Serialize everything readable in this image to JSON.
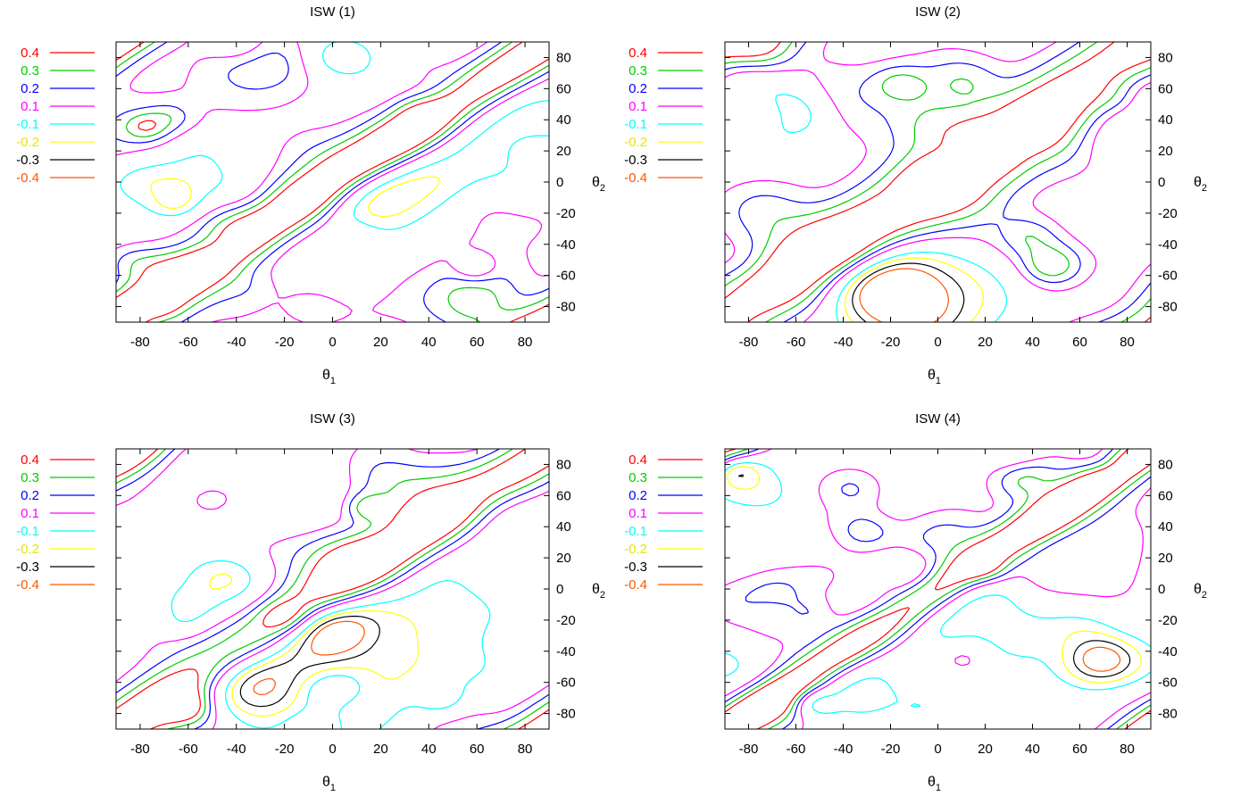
{
  "chart_data": [
    {
      "type": "contour",
      "title": "ISW (1)",
      "xlabel": "θ",
      "xlabel_sub": "1",
      "ylabel": "θ",
      "ylabel_sub": "2",
      "xlim": [
        -90,
        90
      ],
      "ylim": [
        -90,
        90
      ],
      "xticks": [
        -80,
        -60,
        -40,
        -20,
        0,
        20,
        40,
        60,
        80
      ],
      "yticks": [
        80,
        60,
        40,
        20,
        0,
        -20,
        -40,
        -60,
        -80
      ],
      "levels": [
        "0.4",
        "0.3",
        "0.2",
        "0.1",
        "-0.1",
        "-0.2",
        "-0.3",
        "-0.4"
      ],
      "legend_position": "left",
      "grid": false
    },
    {
      "type": "contour",
      "title": "ISW (2)",
      "xlabel": "θ",
      "xlabel_sub": "1",
      "ylabel": "θ",
      "ylabel_sub": "2",
      "xlim": [
        -90,
        90
      ],
      "ylim": [
        -90,
        90
      ],
      "xticks": [
        -80,
        -60,
        -40,
        -20,
        0,
        20,
        40,
        60,
        80
      ],
      "yticks": [
        80,
        60,
        40,
        20,
        0,
        -20,
        -40,
        -60,
        -80
      ],
      "levels": [
        "0.4",
        "0.3",
        "0.2",
        "0.1",
        "-0.1",
        "-0.2",
        "-0.3",
        "-0.4"
      ],
      "legend_position": "left",
      "grid": false
    },
    {
      "type": "contour",
      "title": "ISW (3)",
      "xlabel": "θ",
      "xlabel_sub": "1",
      "ylabel": "θ",
      "ylabel_sub": "2",
      "xlim": [
        -90,
        90
      ],
      "ylim": [
        -90,
        90
      ],
      "xticks": [
        -80,
        -60,
        -40,
        -20,
        0,
        20,
        40,
        60,
        80
      ],
      "yticks": [
        80,
        60,
        40,
        20,
        0,
        -20,
        -40,
        -60,
        -80
      ],
      "levels": [
        "0.4",
        "0.3",
        "0.2",
        "0.1",
        "-0.1",
        "-0.2",
        "-0.3",
        "-0.4"
      ],
      "legend_position": "left",
      "grid": false
    },
    {
      "type": "contour",
      "title": "ISW (4)",
      "xlabel": "θ",
      "xlabel_sub": "1",
      "ylabel": "θ",
      "ylabel_sub": "2",
      "xlim": [
        -90,
        90
      ],
      "ylim": [
        -90,
        90
      ],
      "xticks": [
        -80,
        -60,
        -40,
        -20,
        0,
        20,
        40,
        60,
        80
      ],
      "yticks": [
        80,
        60,
        40,
        20,
        0,
        -20,
        -40,
        -60,
        -80
      ],
      "levels": [
        "0.4",
        "0.3",
        "0.2",
        "0.1",
        "-0.1",
        "-0.2",
        "-0.3",
        "-0.4"
      ],
      "legend_position": "left",
      "grid": false
    }
  ],
  "level_colors": {
    "0.4": "#ff0000",
    "0.3": "#00cc00",
    "0.2": "#0000ff",
    "0.1": "#ff00ff",
    "-0.1": "#00ffff",
    "-0.2": "#ffff00",
    "-0.3": "#000000",
    "-0.4": "#ff5500"
  }
}
